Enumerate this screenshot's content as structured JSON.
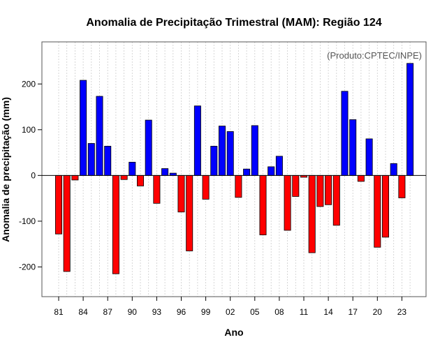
{
  "chart_data": {
    "type": "bar",
    "title": "Anomalia de Precipitação Trimestral (MAM): Região 124",
    "xlabel": "Ano",
    "ylabel": "Anomalia de precipitação (mm)",
    "credit": "(Produto:CPTEC/INPE)",
    "ylim": [
      -265,
      292
    ],
    "yticks": [
      -200,
      -100,
      0,
      100,
      200
    ],
    "ytick_labels": [
      "-200",
      "-100",
      "0",
      "100",
      "200"
    ],
    "xtick_labels": [
      "81",
      "84",
      "87",
      "90",
      "93",
      "96",
      "99",
      "02",
      "05",
      "08",
      "11",
      "14",
      "17",
      "20",
      "23"
    ],
    "xtick_every": 3,
    "grid": true,
    "colors": {
      "positive": "#0000ff",
      "negative": "#ff0000"
    },
    "categories": [
      "1981",
      "1982",
      "1983",
      "1984",
      "1985",
      "1986",
      "1987",
      "1988",
      "1989",
      "1990",
      "1991",
      "1992",
      "1993",
      "1994",
      "1995",
      "1996",
      "1997",
      "1998",
      "1999",
      "2000",
      "2001",
      "2002",
      "2003",
      "2004",
      "2005",
      "2006",
      "2007",
      "2008",
      "2009",
      "2010",
      "2011",
      "2012",
      "2013",
      "2014",
      "2015",
      "2016",
      "2017",
      "2018",
      "2019",
      "2020",
      "2021",
      "2022",
      "2023",
      "2024"
    ],
    "values": [
      -128,
      -210,
      -10,
      208,
      70,
      173,
      64,
      -215,
      -9,
      29,
      -23,
      121,
      -61,
      15,
      5,
      -80,
      -165,
      152,
      -52,
      64,
      108,
      96,
      -48,
      14,
      109,
      -130,
      19,
      42,
      -120,
      -46,
      -4,
      -169,
      -68,
      -64,
      -109,
      184,
      122,
      -13,
      80,
      -157,
      -135,
      26,
      -49,
      245
    ]
  }
}
